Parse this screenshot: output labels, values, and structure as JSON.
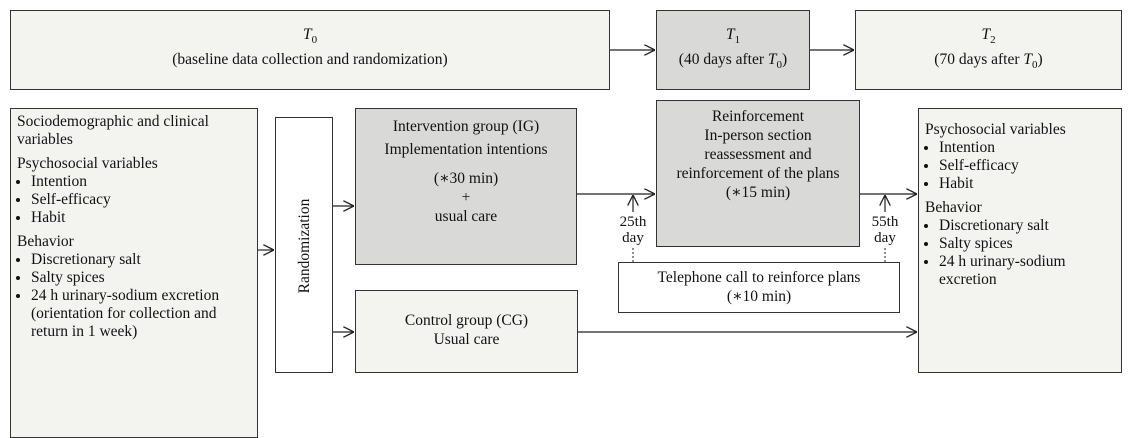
{
  "timepoints": [
    {
      "symbol": "T",
      "subscript": "0",
      "caption": "(baseline data collection and randomization)"
    },
    {
      "symbol": "T",
      "subscript": "1",
      "caption_before": "(40 days after ",
      "caption_symbol": "T",
      "caption_subscript": "0",
      "caption_after": ")"
    },
    {
      "symbol": "T",
      "subscript": "2",
      "caption_before": "(70 days after ",
      "caption_symbol": "T",
      "caption_subscript": "0",
      "caption_after": ")"
    }
  ],
  "baseline": {
    "heading": "Sociodemographic and clinical variables",
    "psychosocial": {
      "heading": "Psychosocial variables",
      "items": [
        "Intention",
        "Self-efficacy",
        "Habit"
      ]
    },
    "behavior": {
      "heading": "Behavior",
      "items": [
        "Discretionary salt",
        "Salty spices",
        "24 h urinary-sodium excretion"
      ],
      "note": "(orientation for collection and return in 1 week)"
    }
  },
  "randomization": "Randomization",
  "intervention": {
    "title": "Intervention group (IG)",
    "line2": "Implementation intentions",
    "duration": "(∗30 min)",
    "plus": "+",
    "line3": "usual care"
  },
  "control": {
    "title": "Control group (CG)",
    "line2": "Usual care"
  },
  "reinforcement": {
    "title": "Reinforcement",
    "text": "In-person section reassessment and reinforcement of the plans (∗15 min)"
  },
  "telephone": {
    "title": "Telephone call to reinforce plans",
    "duration": "(∗10 min)"
  },
  "days": [
    "25th day",
    "55th day"
  ],
  "outcome": {
    "psychosocial": {
      "heading": "Psychosocial variables",
      "items": [
        "Intention",
        "Self-efficacy",
        "Habit"
      ]
    },
    "behavior": {
      "heading": "Behavior",
      "items": [
        "Discretionary salt",
        "Salty spices",
        "24 h urinary-sodium excretion"
      ]
    }
  }
}
